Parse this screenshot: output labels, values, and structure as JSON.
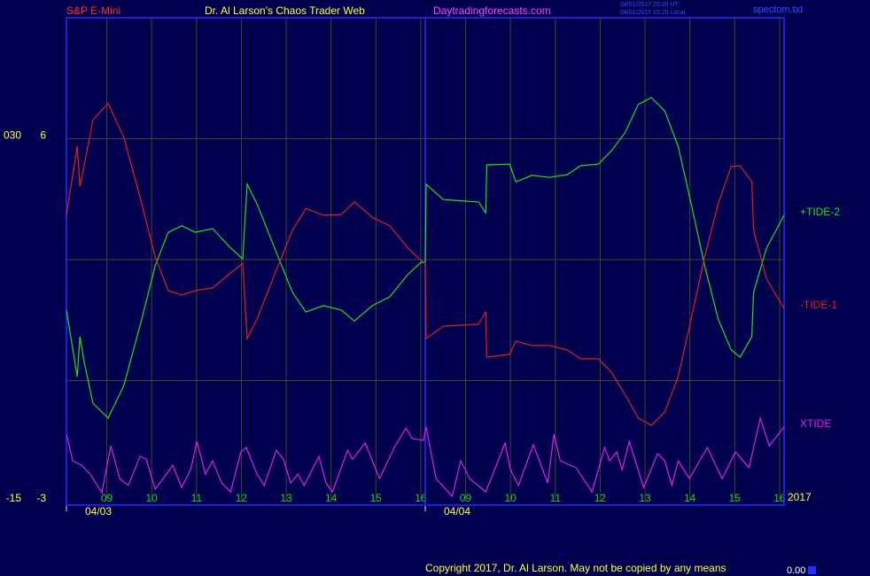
{
  "chart_data": {
    "type": "line",
    "instrument": "S&P E-Mini",
    "title": "Dr. Al Larson's Chaos Trader Web",
    "website": "Daytradingforecasts.com",
    "timestamps": [
      "04/01/2017 20:20 UT",
      "04/01/2017 15:20 Local"
    ],
    "file": "spectom.txt",
    "year_label": "2017",
    "copyright": "Copyright 2017, Dr. Al Larson. May not be copied by any means",
    "footer_value": "0.00",
    "xlim": [
      0.1,
      16.1
    ],
    "xticks": [
      {
        "value": 1,
        "label": "09"
      },
      {
        "value": 2,
        "label": "10"
      },
      {
        "value": 3,
        "label": "11"
      },
      {
        "value": 4,
        "label": "12"
      },
      {
        "value": 5,
        "label": "13"
      },
      {
        "value": 6,
        "label": "14"
      },
      {
        "value": 7,
        "label": "15"
      },
      {
        "value": 8,
        "label": "16"
      },
      {
        "value": 9,
        "label": "09"
      },
      {
        "value": 10,
        "label": "10"
      },
      {
        "value": 11,
        "label": "11"
      },
      {
        "value": 12,
        "label": "12"
      },
      {
        "value": 13,
        "label": "13"
      },
      {
        "value": 14,
        "label": "14"
      },
      {
        "value": 15,
        "label": "15"
      },
      {
        "value": 16,
        "label": "16"
      }
    ],
    "date_ticks": [
      {
        "value": 0.1,
        "label": "04/03"
      },
      {
        "value": 8.1,
        "label": "04/04"
      }
    ],
    "ylim": [
      -3,
      9
    ],
    "yticks": [
      -3,
      6
    ],
    "y2lim": [
      -15,
      45
    ],
    "y2ticks": [
      -15,
      {
        "value": 30,
        "label": "030"
      }
    ],
    "grid": true,
    "background": "#00004e",
    "frame_color": "#2a2aff",
    "grid_color": "#3c4a22",
    "series": [
      {
        "name": "+TIDE-2",
        "color": "#20e020",
        "x": [
          0.1,
          0.34,
          0.4,
          0.5,
          0.69,
          1.03,
          1.38,
          1.78,
          2.08,
          2.37,
          2.67,
          2.97,
          3.36,
          3.76,
          4.03,
          4.09,
          4.13,
          4.35,
          4.74,
          5.14,
          5.44,
          5.83,
          6.23,
          6.52,
          6.92,
          7.31,
          7.71,
          8.0,
          8.1,
          8.12,
          8.5,
          9.29,
          9.45,
          9.47,
          9.98,
          10.12,
          10.48,
          10.87,
          11.27,
          11.56,
          11.96,
          12.25,
          12.55,
          12.85,
          13.14,
          13.44,
          13.74,
          14.03,
          14.33,
          14.63,
          14.92,
          15.12,
          15.38,
          15.42,
          15.71,
          16.1
        ],
        "values": [
          1.75,
          0.1,
          1.09,
          0.43,
          -0.56,
          -0.93,
          -0.12,
          1.53,
          2.85,
          3.68,
          3.84,
          3.68,
          3.77,
          3.29,
          3.02,
          4.16,
          4.87,
          4.38,
          3.29,
          2.19,
          1.7,
          1.86,
          1.75,
          1.48,
          1.86,
          2.08,
          2.63,
          2.93,
          2.93,
          4.87,
          4.49,
          4.43,
          4.16,
          5.35,
          5.37,
          4.93,
          5.09,
          5.04,
          5.11,
          5.33,
          5.37,
          5.7,
          6.14,
          6.85,
          7.02,
          6.69,
          5.81,
          4.38,
          2.85,
          1.53,
          0.76,
          0.58,
          1.09,
          2.19,
          3.29,
          4.1
        ]
      },
      {
        "name": "-TIDE-1",
        "color": "#e02020",
        "x": [
          0.1,
          0.34,
          0.4,
          0.5,
          0.69,
          1.03,
          1.38,
          1.78,
          2.08,
          2.37,
          2.67,
          2.97,
          3.36,
          3.76,
          4.03,
          4.09,
          4.13,
          4.35,
          4.74,
          5.14,
          5.44,
          5.83,
          6.23,
          6.52,
          6.92,
          7.31,
          7.71,
          8.0,
          8.1,
          8.12,
          8.5,
          9.29,
          9.45,
          9.47,
          9.98,
          10.12,
          10.48,
          10.87,
          11.27,
          11.56,
          11.96,
          12.25,
          12.55,
          12.85,
          13.14,
          13.44,
          13.74,
          14.03,
          14.33,
          14.63,
          14.92,
          15.12,
          15.38,
          15.42,
          15.71,
          16.1
        ],
        "values": [
          4.1,
          5.81,
          4.82,
          5.37,
          6.47,
          6.87,
          6.03,
          4.38,
          3.07,
          2.23,
          2.12,
          2.23,
          2.3,
          2.67,
          2.91,
          1.75,
          1.04,
          1.53,
          2.63,
          3.73,
          4.27,
          4.1,
          4.12,
          4.43,
          4.05,
          3.84,
          3.29,
          2.98,
          2.93,
          1.04,
          1.35,
          1.4,
          1.7,
          0.58,
          0.65,
          0.98,
          0.87,
          0.87,
          0.76,
          0.54,
          0.54,
          0.21,
          -0.34,
          -0.93,
          -1.11,
          -0.78,
          0.1,
          1.53,
          3.07,
          4.38,
          5.31,
          5.33,
          4.93,
          3.73,
          2.52,
          1.79
        ]
      },
      {
        "name": "XTIDE",
        "color": "#e020e0",
        "x": [
          0.1,
          0.24,
          0.44,
          0.63,
          0.89,
          1.09,
          1.29,
          1.48,
          1.74,
          1.88,
          2.08,
          2.33,
          2.47,
          2.67,
          2.87,
          3.01,
          3.2,
          3.36,
          3.56,
          3.76,
          3.99,
          4.11,
          4.35,
          4.51,
          4.78,
          4.94,
          5.1,
          5.26,
          5.4,
          5.73,
          5.89,
          6.03,
          6.37,
          6.48,
          6.76,
          7.08,
          7.41,
          7.67,
          7.81,
          8.06,
          8.12,
          8.34,
          8.7,
          8.89,
          9.09,
          9.45,
          9.74,
          9.88,
          10.0,
          10.18,
          10.51,
          10.83,
          10.97,
          11.11,
          11.46,
          11.82,
          12.1,
          12.21,
          12.37,
          12.49,
          12.65,
          12.97,
          13.28,
          13.44,
          13.6,
          13.74,
          13.99,
          14.39,
          14.72,
          15.02,
          15.32,
          15.57,
          15.77,
          16.1
        ],
        "values": [
          -1.33,
          -1.99,
          -2.1,
          -2.32,
          -2.78,
          -1.62,
          -2.43,
          -2.6,
          -1.88,
          -1.95,
          -2.69,
          -2.32,
          -2.1,
          -2.65,
          -2.21,
          -1.51,
          -2.32,
          -1.99,
          -2.54,
          -2.76,
          -1.77,
          -1.66,
          -2.32,
          -2.6,
          -1.73,
          -1.95,
          -2.54,
          -2.32,
          -2.6,
          -1.88,
          -2.54,
          -2.76,
          -1.73,
          -1.95,
          -1.55,
          -2.43,
          -1.66,
          -1.18,
          -1.44,
          -1.48,
          -1.15,
          -2.43,
          -2.87,
          -1.99,
          -2.43,
          -2.76,
          -1.95,
          -1.55,
          -2.21,
          -2.6,
          -1.59,
          -2.54,
          -1.33,
          -1.99,
          -2.16,
          -2.76,
          -1.66,
          -1.99,
          -1.77,
          -2.21,
          -1.51,
          -2.65,
          -1.81,
          -1.99,
          -2.6,
          -1.99,
          -2.43,
          -1.66,
          -2.43,
          -1.77,
          -2.16,
          -0.93,
          -1.62,
          -1.15
        ]
      }
    ]
  }
}
